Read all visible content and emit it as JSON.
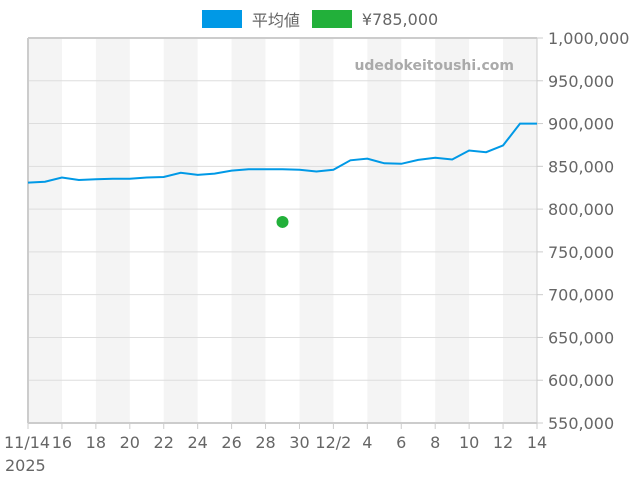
{
  "legend": {
    "items": [
      {
        "label": "平均値",
        "color": "#0099e6"
      },
      {
        "label": "¥785,000",
        "color": "#22b03a"
      }
    ]
  },
  "watermark": "udedokeitoushi.com",
  "colors": {
    "line": "#0099e6",
    "point": "#22b03a",
    "band": "#f4f4f4",
    "grid": "#dddddd",
    "axis": "#cccccc",
    "text": "#666666"
  },
  "chart_data": {
    "type": "line",
    "title": "",
    "xlabel": "",
    "ylabel": "",
    "ylim": [
      550000,
      1000000
    ],
    "yticks": [
      550000,
      600000,
      650000,
      700000,
      750000,
      800000,
      850000,
      900000,
      950000,
      1000000
    ],
    "ytick_labels": [
      "550,000",
      "600,000",
      "650,000",
      "700,000",
      "750,000",
      "800,000",
      "850,000",
      "900,000",
      "950,000",
      "1,000,000"
    ],
    "xticks": [
      "11/14\n2025",
      "16",
      "18",
      "20",
      "22",
      "24",
      "26",
      "28",
      "30",
      "12/2",
      "4",
      "6",
      "8",
      "10",
      "12",
      "14"
    ],
    "x_range": [
      "2025-11-14",
      "2025-12-14"
    ],
    "grid": true,
    "legend_position": "top",
    "series": [
      {
        "name": "平均値",
        "type": "line",
        "x": [
          "11/14",
          "11/15",
          "11/16",
          "11/17",
          "11/18",
          "11/19",
          "11/20",
          "11/21",
          "11/22",
          "11/23",
          "11/24",
          "11/25",
          "11/26",
          "11/27",
          "11/28",
          "11/29",
          "11/30",
          "12/1",
          "12/2",
          "12/3",
          "12/4",
          "12/5",
          "12/6",
          "12/7",
          "12/8",
          "12/9",
          "12/10",
          "12/11",
          "12/12",
          "12/13",
          "12/14"
        ],
        "values": [
          831000,
          832000,
          837000,
          834000,
          835000,
          835500,
          835500,
          837000,
          837500,
          842500,
          840000,
          841500,
          845000,
          846500,
          846500,
          846500,
          846000,
          844000,
          846000,
          857000,
          859000,
          853500,
          853000,
          857500,
          860000,
          858000,
          868500,
          866500,
          874500,
          900000,
          900000
        ]
      },
      {
        "name": "¥785,000",
        "type": "scatter",
        "x": [
          "11/29"
        ],
        "values": [
          785000
        ]
      }
    ]
  }
}
